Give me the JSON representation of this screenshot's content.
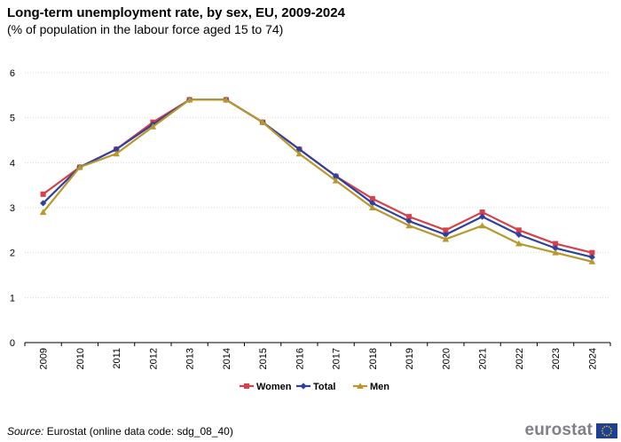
{
  "header": {
    "title": "Long-term unemployment rate, by sex, EU, 2009-2024",
    "subtitle": "(% of population in the labour force aged 15 to 74)"
  },
  "footer": {
    "source_label": "Source:",
    "source_text": "Eurostat (online data code: sdg_08_40)",
    "logo_text": "eurostat"
  },
  "chart_data": {
    "type": "line",
    "title": "Long-term unemployment rate, by sex, EU, 2009-2024",
    "subtitle": "(% of population in the labour force aged 15 to 74)",
    "xlabel": "",
    "ylabel": "",
    "categories": [
      "2009",
      "2010",
      "2011",
      "2012",
      "2013",
      "2014",
      "2015",
      "2016",
      "2017",
      "2018",
      "2019",
      "2020",
      "2021",
      "2022",
      "2023",
      "2024"
    ],
    "ylim": [
      0,
      6
    ],
    "yticks": [
      0,
      1,
      2,
      3,
      4,
      5,
      6
    ],
    "grid": true,
    "legend": "bottom",
    "series": [
      {
        "name": "Women",
        "color": "#d9404a",
        "marker": "square",
        "values": [
          3.3,
          3.9,
          4.3,
          4.9,
          5.4,
          5.4,
          4.9,
          4.3,
          3.7,
          3.2,
          2.8,
          2.5,
          2.9,
          2.5,
          2.2,
          2.0
        ]
      },
      {
        "name": "Total",
        "color": "#2c41a0",
        "marker": "diamond",
        "values": [
          3.1,
          3.9,
          4.3,
          4.85,
          5.4,
          5.4,
          4.9,
          4.3,
          3.7,
          3.1,
          2.7,
          2.4,
          2.8,
          2.4,
          2.1,
          1.9
        ]
      },
      {
        "name": "Men",
        "color": "#b8982c",
        "marker": "triangle",
        "values": [
          2.9,
          3.9,
          4.2,
          4.8,
          5.4,
          5.4,
          4.9,
          4.2,
          3.6,
          3.0,
          2.6,
          2.3,
          2.6,
          2.2,
          2.0,
          1.8
        ]
      }
    ]
  }
}
